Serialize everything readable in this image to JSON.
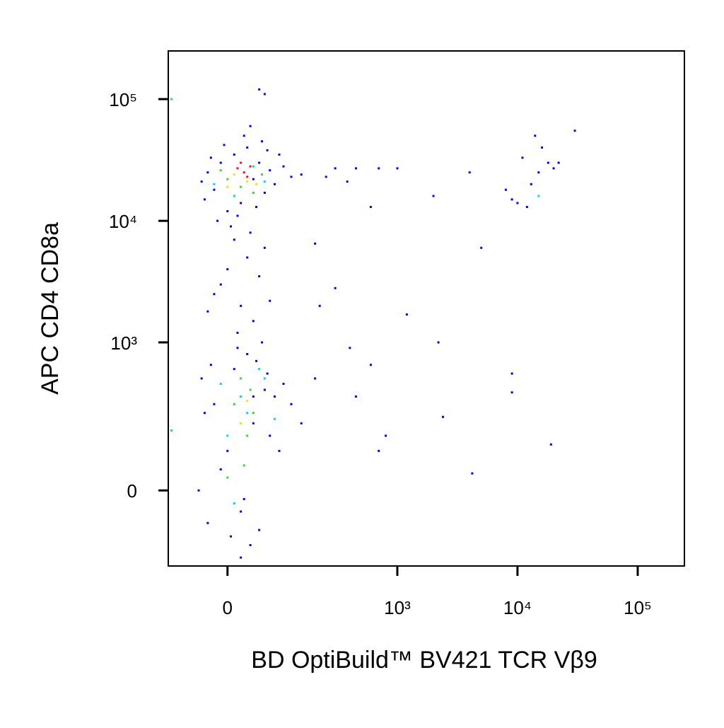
{
  "chart_data": {
    "type": "scatter",
    "x_label": "BD OptiBuild™ BV421 TCR Vβ9",
    "y_label": "APC CD4 CD8a",
    "scale": "biexponential",
    "xlim": [
      -108,
      244500
    ],
    "ylim": [
      -240,
      248700
    ],
    "xticks": [
      0,
      {
        "value": 1000,
        "label": "10³"
      },
      {
        "value": 10000,
        "label": "10⁴"
      },
      {
        "value": 100000,
        "label": "10⁵"
      }
    ],
    "yticks": [
      0,
      {
        "value": 1000,
        "label": "10³"
      },
      {
        "value": 10000,
        "label": "10⁴"
      },
      {
        "value": 100000,
        "label": "10⁵"
      }
    ],
    "series": [
      {
        "color": "#0000ff",
        "x": [
          -30,
          -20,
          -10,
          10,
          20,
          40,
          50,
          60,
          70,
          -40,
          -35,
          0,
          30,
          55,
          80,
          100,
          -25,
          15,
          45,
          -5,
          90,
          120,
          150,
          65,
          25,
          35,
          60,
          50,
          -15,
          5,
          10,
          30,
          -10,
          20,
          40,
          0,
          60,
          -20,
          50,
          15,
          -30,
          70,
          35,
          -40,
          -20,
          0,
          20,
          40,
          60,
          -30,
          10,
          30,
          50,
          70,
          -10,
          25,
          45,
          -35,
          65,
          5,
          80,
          100,
          -45,
          15,
          35,
          55,
          90,
          -25,
          120,
          150,
          200,
          20,
          40,
          300,
          450,
          600,
          700,
          1000,
          2000,
          4000,
          5000,
          300,
          200,
          400,
          450,
          700,
          800,
          1200,
          2200,
          2400,
          4200,
          250,
          380,
          220,
          600,
          8000,
          9000,
          10000,
          12000,
          13000,
          15000,
          18000,
          20000,
          11000,
          16000,
          14000,
          22000,
          30000,
          9000,
          9000,
          19000
        ],
        "y": [
          25000,
          18000,
          30000,
          35000,
          14000,
          22000,
          30000,
          17000,
          26000,
          21000,
          15000,
          12000,
          40000,
          45000,
          20000,
          28000,
          33000,
          11000,
          13000,
          42000,
          35000,
          23000,
          24000,
          38000,
          50000,
          60000,
          110000,
          120000,
          10000,
          9000,
          7000,
          5000,
          3000,
          2000,
          1500,
          4000,
          6000,
          2500,
          3500,
          1200,
          1800,
          2200,
          8000,
          500,
          300,
          100,
          -50,
          200,
          400,
          -80,
          600,
          800,
          -100,
          150,
          50,
          -20,
          700,
          250,
          550,
          -120,
          350,
          450,
          0,
          900,
          -150,
          1000,
          100,
          650,
          300,
          200,
          500,
          -200,
          350,
          27000,
          27000,
          13000,
          27000,
          27000,
          16000,
          25000,
          6000,
          2800,
          6500,
          900,
          350,
          100,
          150,
          1700,
          1000,
          230,
          40,
          23000,
          21000,
          2000,
          650,
          18000,
          15000,
          14000,
          13000,
          20000,
          25000,
          30000,
          27000,
          33000,
          40000,
          50000,
          30000,
          55000,
          550,
          380,
          120
        ]
      },
      {
        "color": "#00d8e8",
        "x": [
          -20,
          10,
          40,
          60,
          -10,
          30,
          50,
          0,
          20,
          -100,
          -100,
          60,
          15000,
          10,
          80
        ],
        "y": [
          20000,
          16000,
          28000,
          21000,
          450,
          250,
          600,
          150,
          350,
          100000,
          170,
          500,
          16000,
          -30,
          220
        ]
      },
      {
        "color": "#40d040",
        "x": [
          0,
          20,
          40,
          -10,
          55,
          10,
          30,
          20,
          40,
          0,
          25,
          35
        ],
        "y": [
          22000,
          19000,
          17000,
          26000,
          24000,
          300,
          150,
          500,
          250,
          30,
          60,
          400
        ]
      },
      {
        "color": "#e8e800",
        "x": [
          10,
          30,
          45,
          0,
          20,
          30
        ],
        "y": [
          24000,
          21000,
          20000,
          19000,
          200,
          320
        ]
      },
      {
        "color": "#ff1010",
        "x": [
          15,
          25,
          35,
          20,
          30
        ],
        "y": [
          27000,
          25000,
          28000,
          30000,
          23000
        ]
      }
    ]
  }
}
